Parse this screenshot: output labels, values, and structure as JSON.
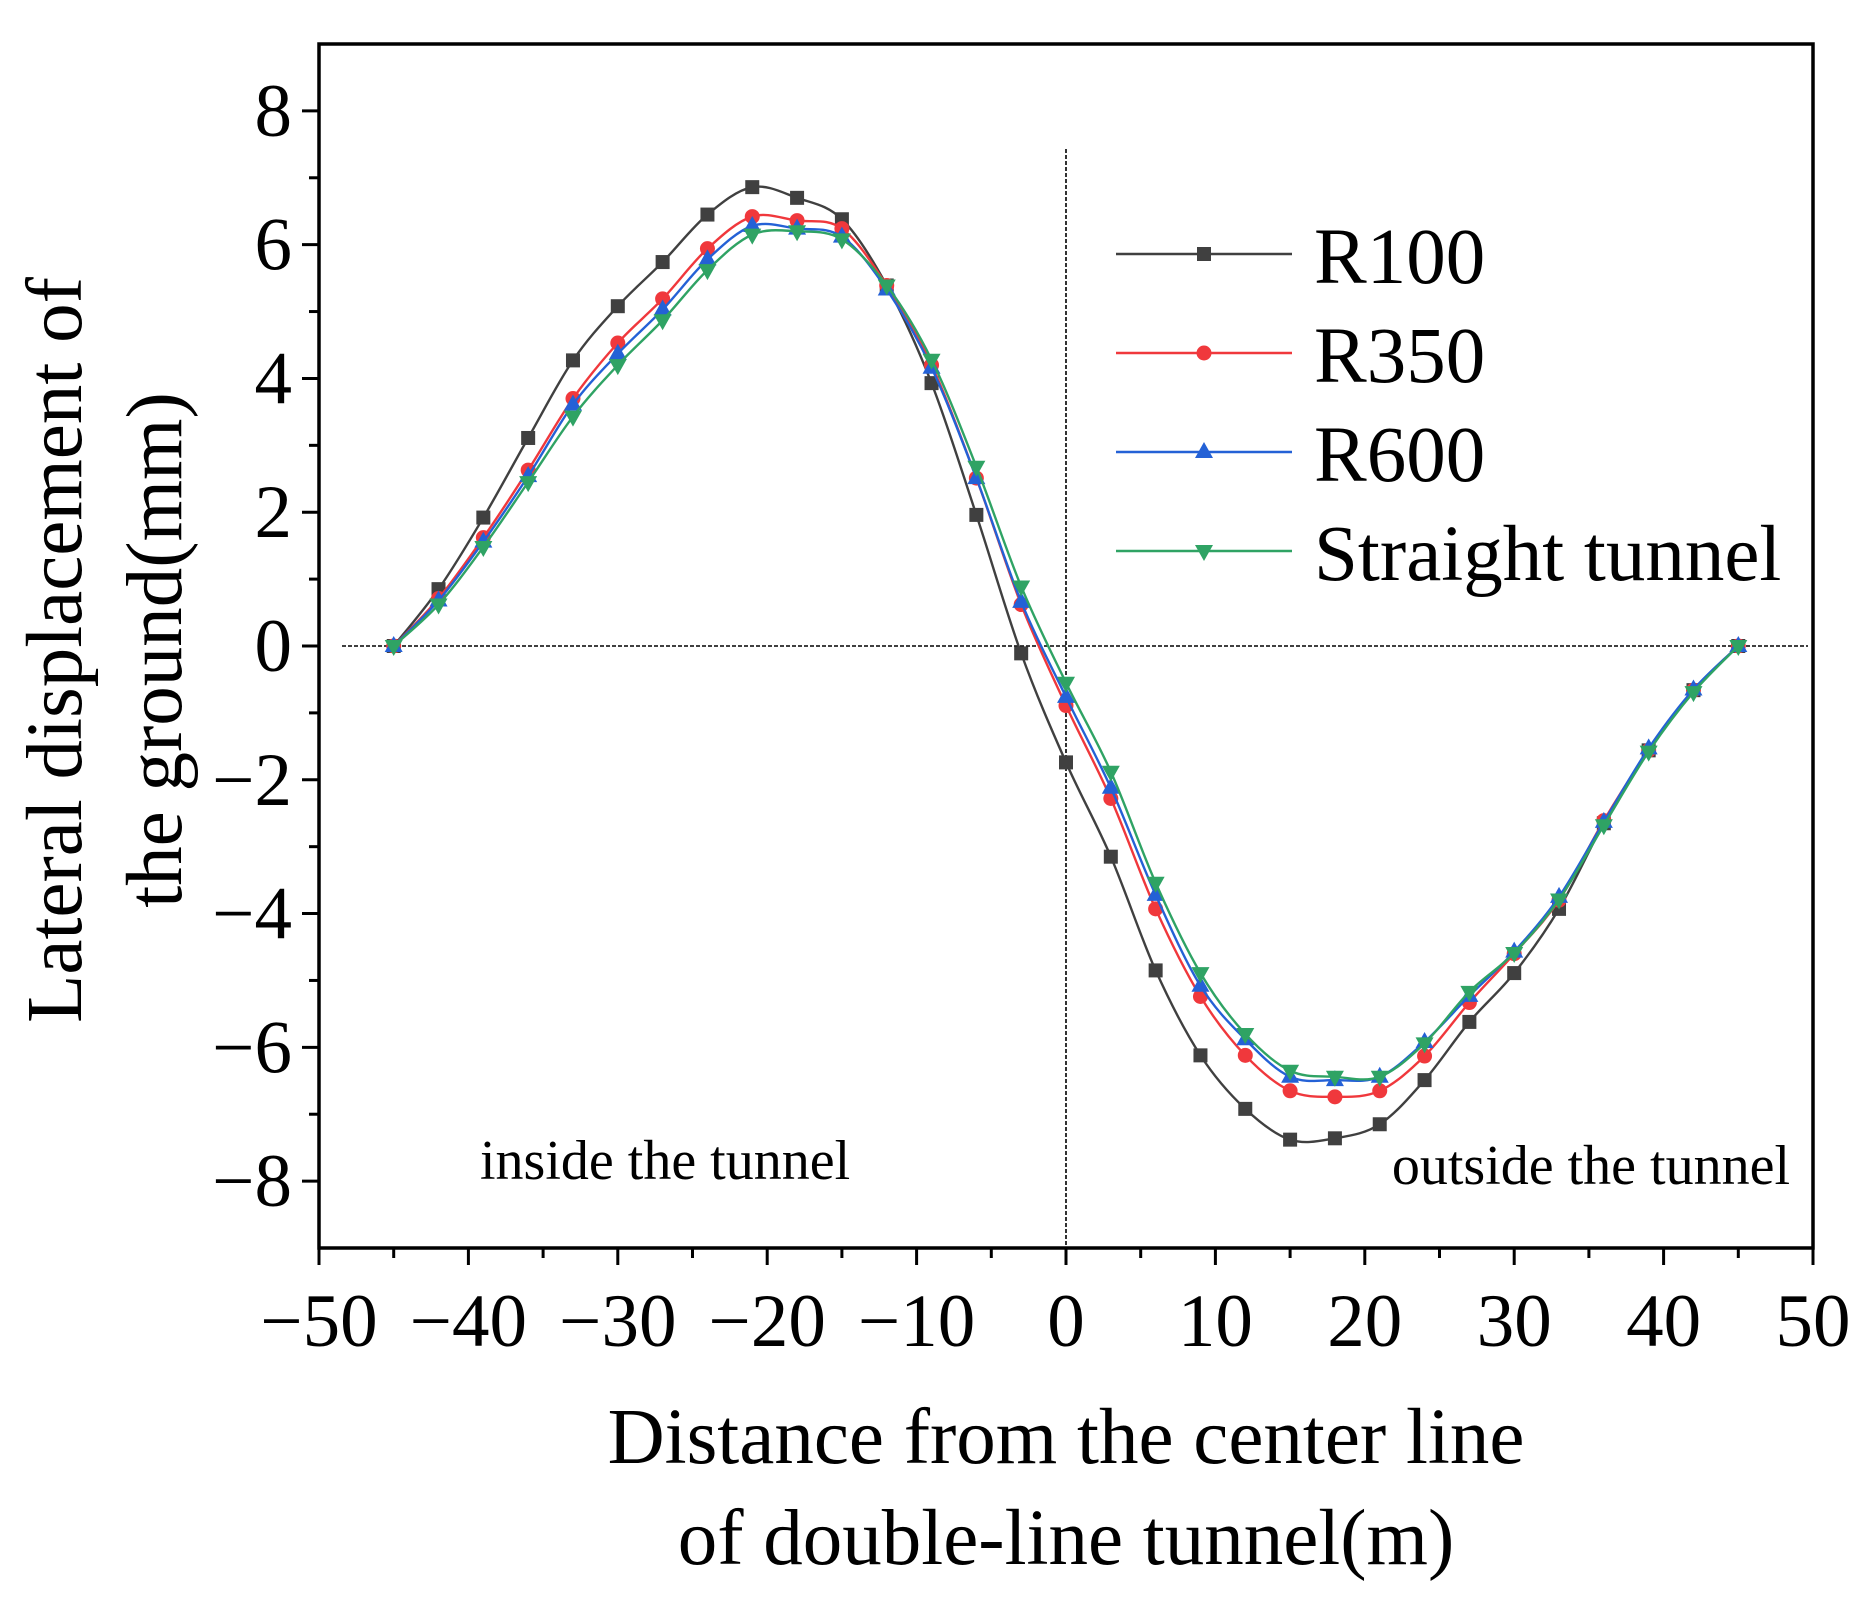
{
  "chart_data": {
    "type": "line",
    "xlabel": [
      "Distance from the center line",
      "of double-line tunnel(m)"
    ],
    "ylabel": [
      "Lateral displacement of",
      "the ground(mm)"
    ],
    "xlim": [
      -50,
      50
    ],
    "ylim": [
      -9,
      9
    ],
    "x_ticks": [
      -50,
      -40,
      -30,
      -20,
      -10,
      0,
      10,
      20,
      30,
      40,
      50
    ],
    "x_tick_labels": [
      "−50",
      "−40",
      "−30",
      "−20",
      "−10",
      "0",
      "10",
      "20",
      "30",
      "40",
      "50"
    ],
    "x_minor_step": 5,
    "y_ticks": [
      -8,
      -6,
      -4,
      -2,
      0,
      2,
      4,
      6,
      8
    ],
    "y_tick_labels": [
      "−8",
      "−6",
      "−4",
      "−2",
      "0",
      "2",
      "4",
      "6",
      "8"
    ],
    "y_minor_step": 1,
    "grid": false,
    "legend": {
      "position": "top-right"
    },
    "reference_lines": {
      "x": [
        0
      ],
      "y": [
        0
      ]
    },
    "annotations": [
      "inside the tunnel",
      "outside the tunnel"
    ],
    "x": [
      -45,
      -42,
      -39,
      -36,
      -33,
      -30,
      -27,
      -24,
      -21,
      -18,
      -15,
      -12,
      -9,
      -6,
      -3,
      0,
      3,
      6,
      9,
      12,
      15,
      18,
      21,
      24,
      27,
      30,
      33,
      36,
      39,
      42,
      45
    ],
    "series": [
      {
        "name": "R100",
        "color": "#404040",
        "marker": "square",
        "values": [
          0,
          0.85,
          1.92,
          3.11,
          4.27,
          5.08,
          5.74,
          6.45,
          6.86,
          6.7,
          6.38,
          5.39,
          3.93,
          1.96,
          -0.11,
          -1.74,
          -3.15,
          -4.85,
          -6.12,
          -6.92,
          -7.38,
          -7.36,
          -7.15,
          -6.49,
          -5.62,
          -4.89,
          -3.93,
          -2.65,
          -1.56,
          -0.66,
          0
        ]
      },
      {
        "name": "R350",
        "color": "#f0383c",
        "marker": "circle",
        "values": [
          0,
          0.71,
          1.62,
          2.63,
          3.7,
          4.53,
          5.19,
          5.94,
          6.42,
          6.36,
          6.24,
          5.39,
          4.2,
          2.51,
          0.62,
          -0.89,
          -2.28,
          -3.93,
          -5.24,
          -6.12,
          -6.65,
          -6.74,
          -6.65,
          -6.13,
          -5.33,
          -4.6,
          -3.8,
          -2.61,
          -1.56,
          -0.66,
          0
        ]
      },
      {
        "name": "R600",
        "color": "#2461d6",
        "marker": "triangle-up",
        "values": [
          0,
          0.68,
          1.56,
          2.54,
          3.61,
          4.37,
          5.03,
          5.78,
          6.28,
          6.24,
          6.12,
          5.33,
          4.16,
          2.51,
          0.66,
          -0.76,
          -2.12,
          -3.72,
          -5.08,
          -5.88,
          -6.44,
          -6.49,
          -6.44,
          -5.92,
          -5.23,
          -4.57,
          -3.75,
          -2.63,
          -1.53,
          -0.65,
          0
        ]
      },
      {
        "name": "Straight tunnel",
        "color": "#2fa364",
        "marker": "triangle-down",
        "values": [
          0,
          0.62,
          1.48,
          2.45,
          3.43,
          4.2,
          4.87,
          5.62,
          6.15,
          6.2,
          6.08,
          5.39,
          4.28,
          2.68,
          0.89,
          -0.55,
          -1.88,
          -3.54,
          -4.89,
          -5.8,
          -6.35,
          -6.44,
          -6.44,
          -5.94,
          -5.17,
          -4.59,
          -3.79,
          -2.68,
          -1.58,
          -0.69,
          0
        ]
      }
    ]
  }
}
